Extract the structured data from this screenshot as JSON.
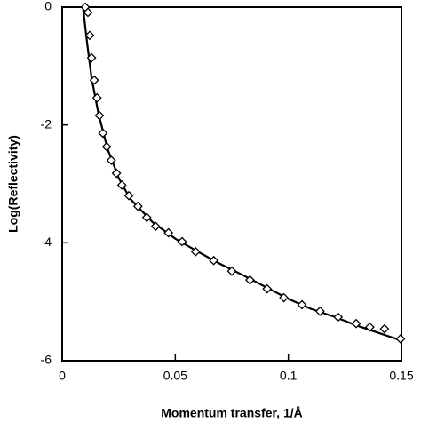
{
  "chart_data": {
    "type": "scatter",
    "x_label": "Momentum transfer, 1/Å",
    "y_label": "Log(Reflectivity)",
    "marker": "diamond",
    "color": "#000000",
    "x": [
      0.0102,
      0.0114,
      0.0122,
      0.013,
      0.0142,
      0.0154,
      0.0165,
      0.018,
      0.0197,
      0.0217,
      0.024,
      0.0264,
      0.0295,
      0.0335,
      0.0374,
      0.0413,
      0.047,
      0.053,
      0.059,
      0.067,
      0.075,
      0.083,
      0.0906,
      0.098,
      0.106,
      0.114,
      0.122,
      0.13,
      0.136,
      0.1425,
      0.1496
    ],
    "values": [
      0,
      -0.09,
      -0.48,
      -0.86,
      -1.24,
      -1.54,
      -1.84,
      -2.14,
      -2.37,
      -2.6,
      -2.82,
      -3.02,
      -3.2,
      -3.38,
      -3.57,
      -3.72,
      -3.83,
      -3.98,
      -4.15,
      -4.3,
      -4.48,
      -4.63,
      -4.78,
      -4.93,
      -5.05,
      -5.16,
      -5.26,
      -5.37,
      -5.43,
      -5.46,
      -5.63
    ],
    "fit": {
      "color": "#000000",
      "x": [
        0.0092,
        0.011,
        0.013,
        0.016,
        0.02,
        0.025,
        0.03,
        0.04,
        0.05,
        0.06,
        0.07,
        0.08,
        0.09,
        0.1,
        0.11,
        0.12,
        0.13,
        0.14,
        0.15
      ],
      "values": [
        0,
        -0.6,
        -1.2,
        -1.8,
        -2.4,
        -2.9,
        -3.25,
        -3.65,
        -3.93,
        -4.15,
        -4.36,
        -4.55,
        -4.75,
        -4.95,
        -5.12,
        -5.25,
        -5.4,
        -5.53,
        -5.66
      ]
    },
    "xlim": [
      0,
      0.15
    ],
    "xticks": [
      0,
      0.05,
      0.1,
      0.15
    ],
    "ylim": [
      -6,
      0
    ],
    "yticks": [
      0,
      -2,
      -4,
      -6
    ],
    "grid": false
  }
}
